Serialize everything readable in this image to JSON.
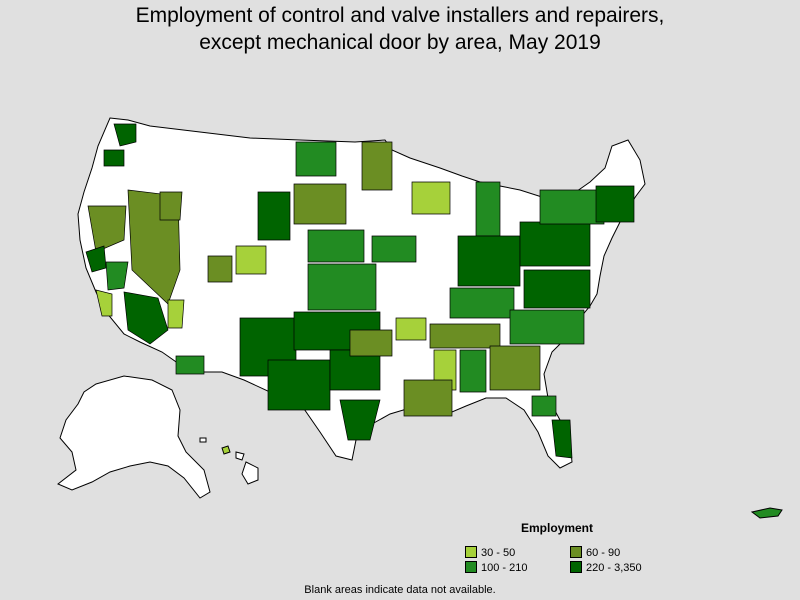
{
  "title": {
    "line1": "Employment of control and valve installers and repairers,",
    "line2": "except mechanical door by area, May 2019"
  },
  "legend": {
    "title": "Employment",
    "items": [
      {
        "label": "30 - 50",
        "color": "#a6d13a"
      },
      {
        "label": "60 - 90",
        "color": "#6b8e23"
      },
      {
        "label": "100 - 210",
        "color": "#228b22"
      },
      {
        "label": "220 - 3,350",
        "color": "#006400"
      }
    ]
  },
  "footnote": "Blank areas indicate data not available.",
  "colors": {
    "background": "#e0e0e0",
    "no_data": "#ffffff",
    "border": "#000000"
  }
}
